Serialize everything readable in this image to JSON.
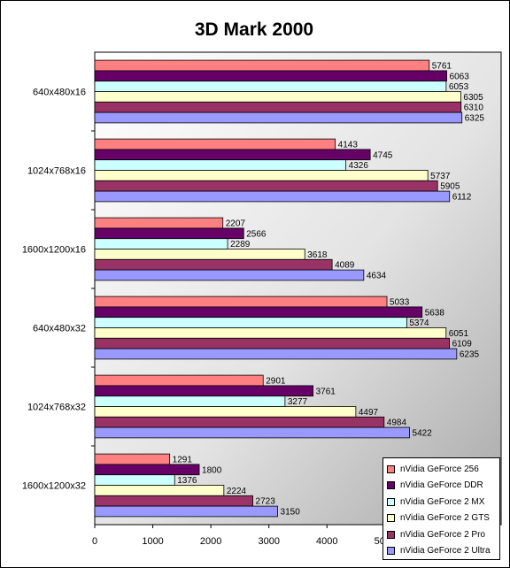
{
  "chart_data": {
    "type": "bar",
    "orientation": "horizontal",
    "title": "3D Mark 2000",
    "categories": [
      "640x480x16",
      "1024x768x16",
      "1600x1200x16",
      "640x480x32",
      "1024x768x32",
      "1600x1200x32"
    ],
    "series": [
      {
        "name": "nVidia GeForce 256",
        "color": "#ff8080",
        "values": [
          5761,
          4143,
          2207,
          5033,
          2901,
          1291
        ]
      },
      {
        "name": "nVidia GeForce DDR",
        "color": "#660066",
        "values": [
          6063,
          4745,
          2566,
          5638,
          3761,
          1800
        ]
      },
      {
        "name": "nVidia GeForce 2 MX",
        "color": "#ccffff",
        "values": [
          6053,
          4326,
          2289,
          5374,
          3277,
          1376
        ]
      },
      {
        "name": "nVidia GeForce 2 GTS",
        "color": "#ffffcc",
        "values": [
          6305,
          5737,
          3618,
          6051,
          4497,
          2224
        ]
      },
      {
        "name": "nVidia GeForce 2 Pro",
        "color": "#993366",
        "values": [
          6310,
          5905,
          4089,
          6109,
          4984,
          2723
        ]
      },
      {
        "name": "nVidia GeForce 2 Ultra",
        "color": "#9999ff",
        "values": [
          6325,
          6112,
          4634,
          6235,
          5422,
          3150
        ]
      }
    ],
    "xticks": [
      0,
      1000,
      2000,
      3000,
      4000,
      5000,
      6000
    ],
    "xlim": [
      0,
      7000
    ],
    "grid": false,
    "legend_position": "bottom-right"
  }
}
